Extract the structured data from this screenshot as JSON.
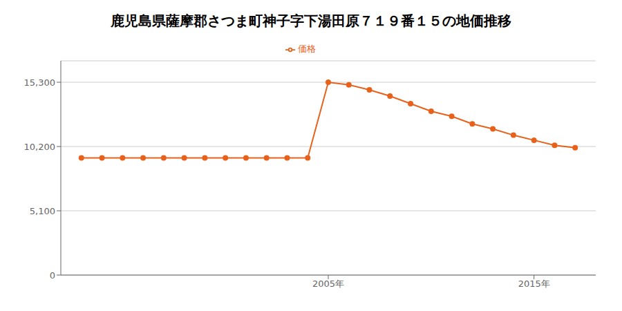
{
  "chart_data": {
    "type": "line",
    "title": "鹿児島県薩摩郡さつま町神子字下湯田原７１９番１５の地価推移",
    "x": [
      1993,
      1994,
      1995,
      1996,
      1997,
      1998,
      1999,
      2000,
      2001,
      2002,
      2003,
      2004,
      2005,
      2006,
      2007,
      2008,
      2009,
      2010,
      2011,
      2012,
      2013,
      2014,
      2015,
      2016,
      2017
    ],
    "series": [
      {
        "name": "価格",
        "color": "#E8611A",
        "marker": "circle",
        "values": [
          9300,
          9300,
          9300,
          9300,
          9300,
          9300,
          9300,
          9300,
          9300,
          9300,
          9300,
          9300,
          15300,
          15100,
          14700,
          14200,
          13600,
          13000,
          12600,
          12000,
          11600,
          11100,
          10700,
          10300,
          10100
        ]
      }
    ],
    "xlim": [
      1992,
      2018
    ],
    "xticks": [
      {
        "value": 2005,
        "label": "2005年"
      },
      {
        "value": 2015,
        "label": "2015年"
      }
    ],
    "ylim": [
      0,
      17000
    ],
    "yticks": [
      0,
      {
        "value": 5100,
        "label": "5,100"
      },
      {
        "value": 10200,
        "label": "10,200"
      },
      {
        "value": 15300,
        "label": "15,300"
      }
    ],
    "grid": true,
    "legend": "top"
  }
}
